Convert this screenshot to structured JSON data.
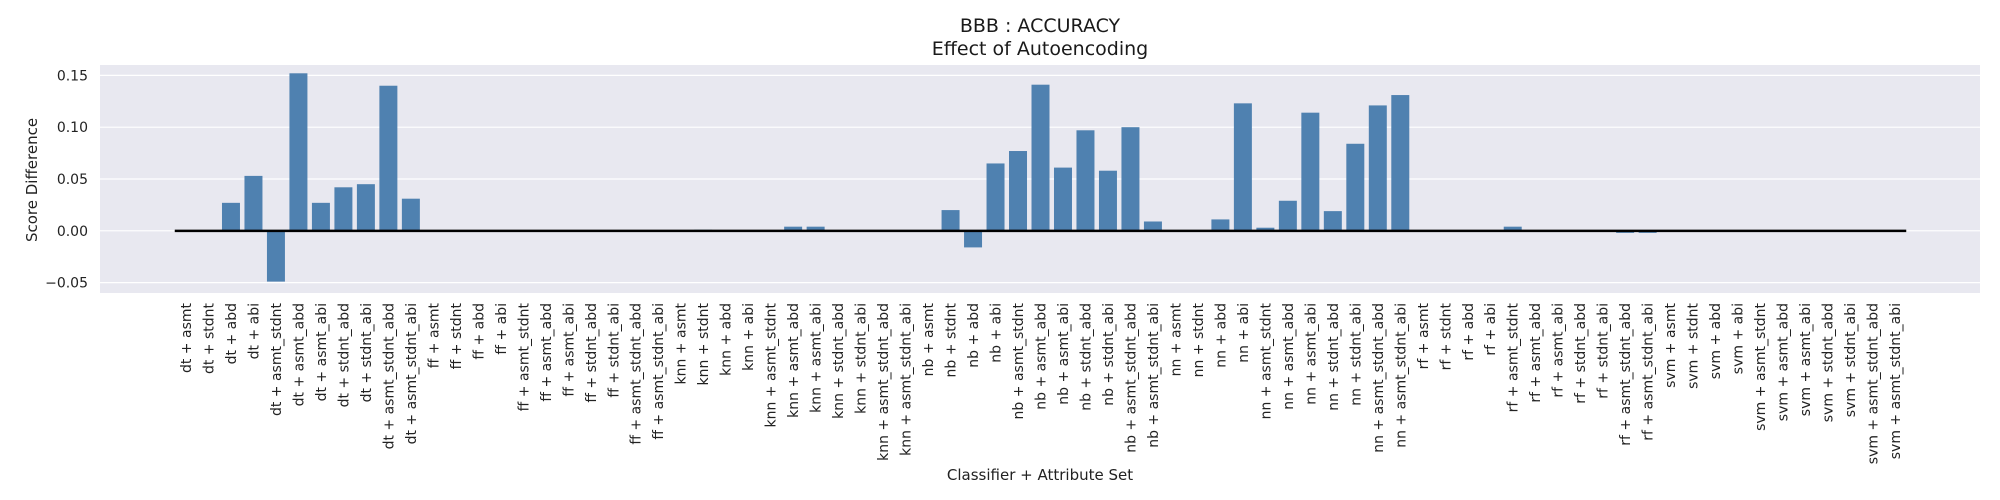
{
  "chart_data": {
    "type": "bar",
    "title": "BBB : ACCURACY",
    "subtitle": "Effect of Autoencoding",
    "xlabel": "Classifier + Attribute Set",
    "ylabel": "Score Difference",
    "ylim": [
      -0.06,
      0.16
    ],
    "yticks": [
      -0.05,
      0.0,
      0.05,
      0.1,
      0.15
    ],
    "ytick_labels": [
      "−0.05",
      "0.00",
      "0.05",
      "0.10",
      "0.15"
    ],
    "grid": true,
    "legend": "none",
    "bar_color": "#4f81b0",
    "background_color": "#e8e8f0",
    "zero_line_color": "#000000",
    "categories": [
      "dt + asmt",
      "dt + stdnt",
      "dt + abd",
      "dt + abi",
      "dt + asmt_stdnt",
      "dt + asmt_abd",
      "dt + asmt_abi",
      "dt + stdnt_abd",
      "dt + stdnt_abi",
      "dt + asmt_stdnt_abd",
      "dt + asmt_stdnt_abi",
      "ff + asmt",
      "ff + stdnt",
      "ff + abd",
      "ff + abi",
      "ff + asmt_stdnt",
      "ff + asmt_abd",
      "ff + asmt_abi",
      "ff + stdnt_abd",
      "ff + stdnt_abi",
      "ff + asmt_stdnt_abd",
      "ff + asmt_stdnt_abi",
      "knn + asmt",
      "knn + stdnt",
      "knn + abd",
      "knn + abi",
      "knn + asmt_stdnt",
      "knn + asmt_abd",
      "knn + asmt_abi",
      "knn + stdnt_abd",
      "knn + stdnt_abi",
      "knn + asmt_stdnt_abd",
      "knn + asmt_stdnt_abi",
      "nb + asmt",
      "nb + stdnt",
      "nb + abd",
      "nb + abi",
      "nb + asmt_stdnt",
      "nb + asmt_abd",
      "nb + asmt_abi",
      "nb + stdnt_abd",
      "nb + stdnt_abi",
      "nb + asmt_stdnt_abd",
      "nb + asmt_stdnt_abi",
      "nn + asmt",
      "nn + stdnt",
      "nn + abd",
      "nn + abi",
      "nn + asmt_stdnt",
      "nn + asmt_abd",
      "nn + asmt_abi",
      "nn + stdnt_abd",
      "nn + stdnt_abi",
      "nn + asmt_stdnt_abd",
      "nn + asmt_stdnt_abi",
      "rf + asmt",
      "rf + stdnt",
      "rf + abd",
      "rf + abi",
      "rf + asmt_stdnt",
      "rf + asmt_abd",
      "rf + asmt_abi",
      "rf + stdnt_abd",
      "rf + stdnt_abi",
      "rf + asmt_stdnt_abd",
      "rf + asmt_stdnt_abi",
      "svm + asmt",
      "svm + stdnt",
      "svm + abd",
      "svm + abi",
      "svm + asmt_stdnt",
      "svm + asmt_abd",
      "svm + asmt_abi",
      "svm + stdnt_abd",
      "svm + stdnt_abi",
      "svm + asmt_stdnt_abd",
      "svm + asmt_stdnt_abi"
    ],
    "values": [
      0.0,
      0.0,
      0.027,
      0.053,
      -0.049,
      0.152,
      0.027,
      0.042,
      0.045,
      0.14,
      0.031,
      0.0,
      0.0,
      0.0,
      0.0,
      0.0,
      0.0,
      0.0,
      0.0,
      0.0,
      0.0,
      0.0,
      0.0,
      0.001,
      0.0,
      0.0,
      0.0,
      0.004,
      0.004,
      0.0,
      0.0,
      0.0,
      0.0,
      0.0,
      0.02,
      -0.016,
      0.065,
      0.077,
      0.141,
      0.061,
      0.097,
      0.058,
      0.1,
      0.009,
      0.0,
      0.0,
      0.011,
      0.123,
      0.003,
      0.029,
      0.114,
      0.019,
      0.084,
      0.121,
      0.131,
      0.0,
      0.0,
      0.0,
      0.0,
      0.004,
      0.0,
      0.0,
      0.0,
      0.0,
      -0.002,
      -0.002,
      0.0,
      0.0,
      0.0,
      0.0,
      0.0,
      0.0,
      0.0,
      0.0,
      0.0,
      0.0,
      0.0
    ]
  }
}
